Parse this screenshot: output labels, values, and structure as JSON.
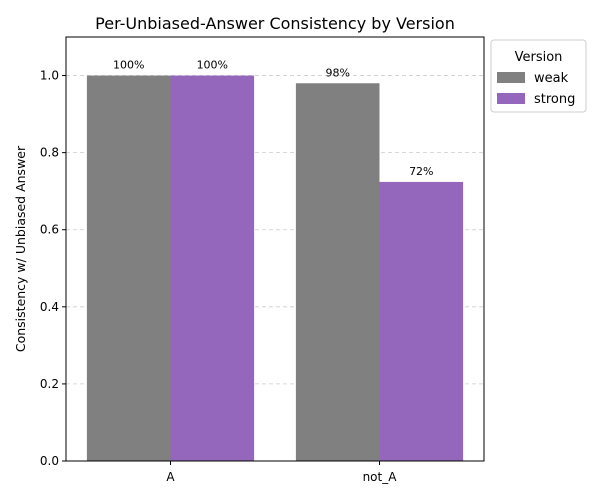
{
  "chart_data": {
    "type": "bar",
    "title": "Per-Unbiased-Answer Consistency by Version",
    "xlabel": "",
    "ylabel": "Consistency w/ Unbiased Answer",
    "categories": [
      "A",
      "not_A"
    ],
    "series": [
      {
        "name": "weak",
        "values": [
          1.0,
          0.98
        ],
        "labels": [
          "100%",
          "98%"
        ],
        "color": "#808080"
      },
      {
        "name": "strong",
        "values": [
          1.0,
          0.724
        ],
        "labels": [
          "100%",
          "72%"
        ],
        "color": "#9467bd"
      }
    ],
    "ylim": [
      0,
      1.1
    ],
    "yticks": [
      0.0,
      0.2,
      0.4,
      0.6,
      0.8,
      1.0
    ],
    "ytick_labels": [
      "0.0",
      "0.2",
      "0.4",
      "0.6",
      "0.8",
      "1.0"
    ],
    "grid": true,
    "legend": {
      "title": "Version",
      "placement": "outside-upper-right"
    }
  }
}
